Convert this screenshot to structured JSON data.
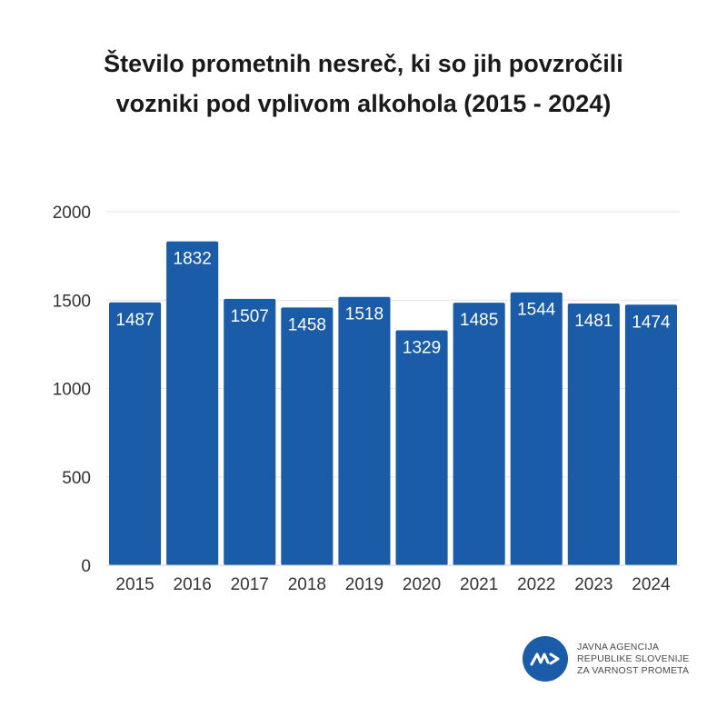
{
  "chart_data": {
    "type": "bar",
    "title_line1": "Število prometnih nesreč, ki so jih povzročili",
    "title_line2": "vozniki pod vplivom alkohola (2015 - 2024)",
    "categories": [
      "2015",
      "2016",
      "2017",
      "2018",
      "2019",
      "2020",
      "2021",
      "2022",
      "2023",
      "2024"
    ],
    "values": [
      1487,
      1832,
      1507,
      1458,
      1518,
      1329,
      1485,
      1544,
      1481,
      1474
    ],
    "ylim": [
      0,
      2000
    ],
    "yticks": [
      0,
      500,
      1000,
      1500,
      2000
    ],
    "xlabel": "",
    "ylabel": "",
    "grid": true,
    "bar_color": "#1a5ca8"
  },
  "logo": {
    "line1": "JAVNA AGENCIJA",
    "line2": "REPUBLIKE SLOVENIJE",
    "line3": "ZA VARNOST PROMETA",
    "icon": "avp-logo-icon"
  }
}
